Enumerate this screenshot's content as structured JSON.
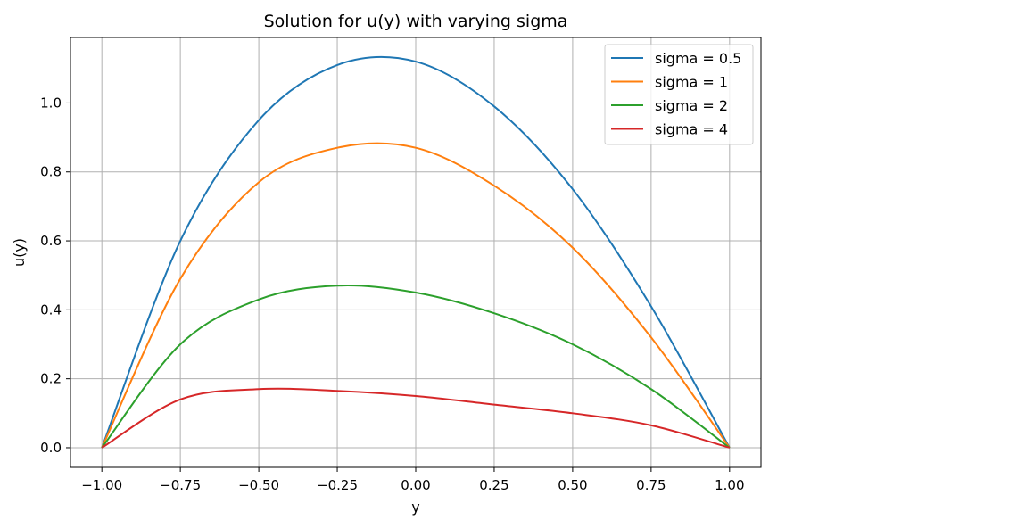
{
  "chart_data": {
    "type": "line",
    "title": "Solution for u(y) with varying sigma",
    "xlabel": "y",
    "ylabel": "u(y)",
    "xlim": [
      -1.1,
      1.1
    ],
    "ylim": [
      -0.057,
      1.19
    ],
    "grid": true,
    "legend_position": "top-right",
    "x_ticks": [
      -1.0,
      -0.75,
      -0.5,
      -0.25,
      0.0,
      0.25,
      0.5,
      0.75,
      1.0
    ],
    "x_tick_labels": [
      "−1.00",
      "−0.75",
      "−0.50",
      "−0.25",
      "0.00",
      "0.25",
      "0.50",
      "0.75",
      "1.00"
    ],
    "y_ticks": [
      0.0,
      0.2,
      0.4,
      0.6,
      0.8,
      1.0
    ],
    "y_tick_labels": [
      "0.0",
      "0.2",
      "0.4",
      "0.6",
      "0.8",
      "1.0"
    ],
    "x": [
      -1.0,
      -0.75,
      -0.5,
      -0.25,
      0.0,
      0.25,
      0.5,
      0.75,
      1.0
    ],
    "series": [
      {
        "name": "sigma = 0.5",
        "color": "#1f77b4",
        "values": [
          0.0,
          0.6,
          0.95,
          1.11,
          1.12,
          0.99,
          0.75,
          0.41,
          0.0
        ]
      },
      {
        "name": "sigma = 1",
        "color": "#ff7f0e",
        "values": [
          0.0,
          0.49,
          0.77,
          0.87,
          0.87,
          0.76,
          0.58,
          0.32,
          0.0
        ]
      },
      {
        "name": "sigma = 2",
        "color": "#2ca02c",
        "values": [
          0.0,
          0.3,
          0.43,
          0.47,
          0.45,
          0.39,
          0.3,
          0.17,
          0.0
        ]
      },
      {
        "name": "sigma = 4",
        "color": "#d62728",
        "values": [
          0.0,
          0.14,
          0.17,
          0.165,
          0.15,
          0.125,
          0.1,
          0.065,
          0.0
        ]
      }
    ]
  }
}
